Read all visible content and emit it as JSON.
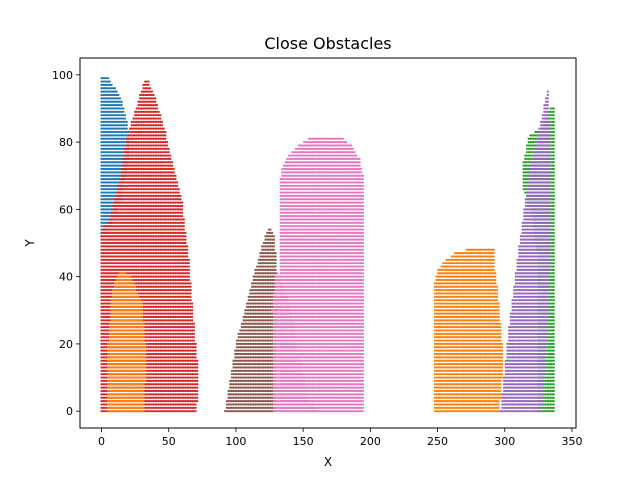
{
  "chart_data": {
    "type": "scatter",
    "title": "Close Obstacles",
    "xlabel": "X",
    "ylabel": "Y",
    "xlim": [
      -16,
      353
    ],
    "ylim": [
      -5,
      105
    ],
    "xticks": [
      0,
      50,
      100,
      150,
      200,
      250,
      300,
      350
    ],
    "yticks": [
      0,
      20,
      40,
      60,
      80,
      100
    ],
    "grid": false,
    "legend": "none",
    "marker_size": 2.2,
    "row_spacing": 1,
    "col_spacing": 1.25,
    "series": [
      {
        "color": "#1f77b4",
        "polygon": [
          [
            0,
            100
          ],
          [
            6,
            99
          ],
          [
            10,
            96
          ],
          [
            15,
            92
          ],
          [
            18,
            88
          ],
          [
            20,
            83
          ],
          [
            20,
            75
          ],
          [
            16,
            65
          ],
          [
            11,
            58
          ],
          [
            4,
            53
          ],
          [
            0,
            52
          ]
        ]
      },
      {
        "color": "#ff7f0e",
        "polygon": [
          [
            248,
            0
          ],
          [
            296,
            0
          ],
          [
            298,
            10
          ],
          [
            298,
            20
          ],
          [
            296,
            30
          ],
          [
            294,
            38
          ],
          [
            292,
            45
          ],
          [
            292,
            48.5
          ],
          [
            275,
            48.5
          ],
          [
            262,
            47
          ],
          [
            254,
            44
          ],
          [
            250,
            42
          ],
          [
            248,
            38
          ]
        ]
      },
      {
        "color": "#2ca02c",
        "polygon": [
          [
            325,
            0
          ],
          [
            337,
            0
          ],
          [
            337,
            91
          ],
          [
            334,
            90
          ],
          [
            330,
            87
          ],
          [
            327,
            84
          ],
          [
            318,
            82
          ],
          [
            314,
            74
          ],
          [
            314,
            66
          ],
          [
            320,
            58
          ],
          [
            325,
            45
          ]
        ]
      },
      {
        "color": "#9467bd",
        "polygon": [
          [
            297,
            0
          ],
          [
            328,
            0
          ],
          [
            333,
            35
          ],
          [
            334,
            60
          ],
          [
            334,
            75
          ],
          [
            333,
            90
          ],
          [
            332,
            96
          ],
          [
            329,
            90
          ],
          [
            324,
            82
          ],
          [
            318,
            70
          ],
          [
            311,
            50
          ],
          [
            304,
            28
          ]
        ]
      },
      {
        "color": "#8c564b",
        "polygon": [
          [
            92,
            0
          ],
          [
            130,
            0
          ],
          [
            130,
            12
          ],
          [
            131,
            30
          ],
          [
            130,
            45
          ],
          [
            128,
            53
          ],
          [
            125,
            55
          ],
          [
            119,
            49
          ],
          [
            110,
            35
          ],
          [
            100,
            20
          ],
          [
            95,
            8
          ]
        ]
      },
      {
        "color": "#e377c2",
        "polygon": [
          [
            128,
            0
          ],
          [
            160,
            0
          ],
          [
            154,
            4
          ],
          [
            146,
            18
          ],
          [
            140,
            32
          ],
          [
            135,
            38
          ],
          [
            130,
            42
          ],
          [
            127,
            30
          ]
        ]
      },
      {
        "color": "#e377c2",
        "polygon": [
          [
            132,
            0
          ],
          [
            195,
            0
          ],
          [
            195,
            70
          ],
          [
            192,
            75
          ],
          [
            186,
            79
          ],
          [
            178,
            81.5
          ],
          [
            156,
            81.5
          ],
          [
            146,
            79
          ],
          [
            139,
            76
          ],
          [
            134,
            72
          ],
          [
            133,
            68
          ],
          [
            133,
            30
          ]
        ]
      },
      {
        "color": "#d62728",
        "polygon": [
          [
            0,
            0
          ],
          [
            71,
            0
          ],
          [
            72,
            12
          ],
          [
            69,
            25
          ],
          [
            65,
            45
          ],
          [
            60,
            62
          ],
          [
            55,
            70
          ],
          [
            47,
            84
          ],
          [
            40,
            93
          ],
          [
            34,
            99
          ],
          [
            31,
            97
          ],
          [
            24,
            88
          ],
          [
            18,
            80
          ],
          [
            14,
            70
          ],
          [
            10,
            63
          ],
          [
            6,
            57
          ],
          [
            0,
            54
          ]
        ]
      },
      {
        "color": "#ff7f0e",
        "polygon": [
          [
            5,
            0
          ],
          [
            32,
            0
          ],
          [
            33,
            18
          ],
          [
            30,
            32
          ],
          [
            22,
            40
          ],
          [
            14,
            42
          ],
          [
            8,
            36
          ],
          [
            5,
            20
          ]
        ]
      }
    ]
  }
}
